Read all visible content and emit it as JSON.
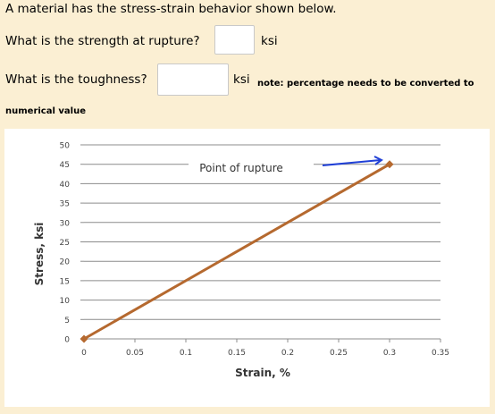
{
  "question": {
    "intro": "A material has the stress-strain behavior shown below.",
    "strength_prompt": "What is the strength at rupture?",
    "strength_value": "",
    "strength_unit": "ksi",
    "toughness_prompt": "What is the toughness?",
    "toughness_value": "",
    "toughness_unit": "ksi",
    "note_line1": "note: percentage needs to be converted to",
    "note_line2": "numerical value"
  },
  "colors": {
    "background": "#fbefd3",
    "line": "#b5692f",
    "marker": "#b5692f",
    "arrow": "#1f3fd6"
  },
  "chart_data": {
    "type": "line",
    "title": "",
    "xlabel": "Strain, %",
    "ylabel": "Stress, ksi",
    "xlim": [
      0,
      0.35
    ],
    "ylim": [
      0,
      50
    ],
    "x_ticks": [
      "0",
      "0.05",
      "0.1",
      "0.15",
      "0.2",
      "0.25",
      "0.3",
      "0.35"
    ],
    "y_ticks": [
      "0",
      "5",
      "10",
      "15",
      "20",
      "25",
      "30",
      "35",
      "40",
      "45",
      "50"
    ],
    "grid": "horizontal",
    "series": [
      {
        "x": [
          0,
          0.3
        ],
        "y": [
          0,
          45
        ],
        "markers": "diamond"
      }
    ],
    "annotations": [
      {
        "text": "Point of rupture",
        "target_x": 0.3,
        "target_y": 45
      }
    ]
  }
}
